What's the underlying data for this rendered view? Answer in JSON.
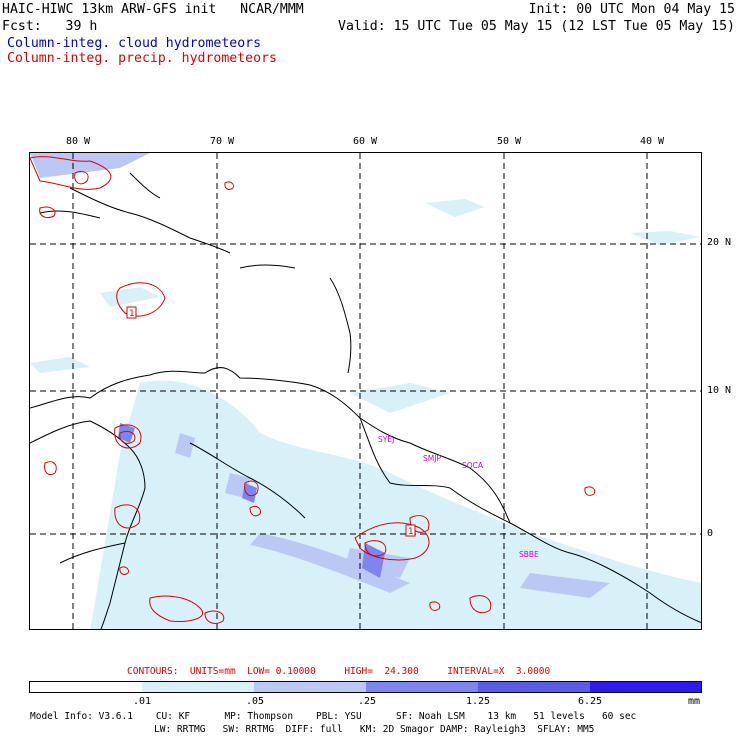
{
  "header": {
    "left_line1": "HAIC-HIWC 13km ARW-GFS init   NCAR/MMM",
    "left_line2": "Fcst:   39 h",
    "right_line1": "Init: 00 UTC Mon 04 May 15",
    "right_line2": "Valid: 15 UTC Tue 05 May 15 (12 LST Tue 05 May 15)",
    "legend_cloud": "Column-integ. cloud hydrometeors",
    "legend_precip": "Column-integ. precip. hydrometeors"
  },
  "map": {
    "lon_labels": [
      "80 W",
      "70 W",
      "60 W",
      "50 W",
      "40 W"
    ],
    "lat_labels": [
      "20 N",
      "10 N",
      "0"
    ],
    "station_labels": [
      "SYEJ",
      "SMJP",
      "SOCA",
      "SBBE"
    ],
    "contour_labels": [
      "1",
      "1"
    ]
  },
  "contours_line": "CONTOURS:  UNITS=mm  LOW= 0.10000     HIGH=  24.300     INTERVAL=X  3.0000",
  "colorbar": {
    "ticks": [
      ".01",
      ".05",
      ".25",
      "1.25",
      "6.25"
    ],
    "unit": "mm",
    "colors": [
      "#ffffff",
      "#d8f1f8",
      "#bcc8f4",
      "#7d86ee",
      "#5b5ce6",
      "#2b1bef"
    ]
  },
  "model_info": {
    "line1": "Model Info: V3.6.1    CU: KF      MP: Thompson    PBL: YSU      SF: Noah LSM    13 km   51 levels   60 sec",
    "line2": "LW: RRTMG   SW: RRTMG  DIFF: full   KM: 2D Smagor DAMP: Rayleigh3  SFLAY: MM5"
  },
  "colors": {
    "cloud": "#0000cc",
    "precip": "#e00000",
    "station": "#cc00cc"
  }
}
